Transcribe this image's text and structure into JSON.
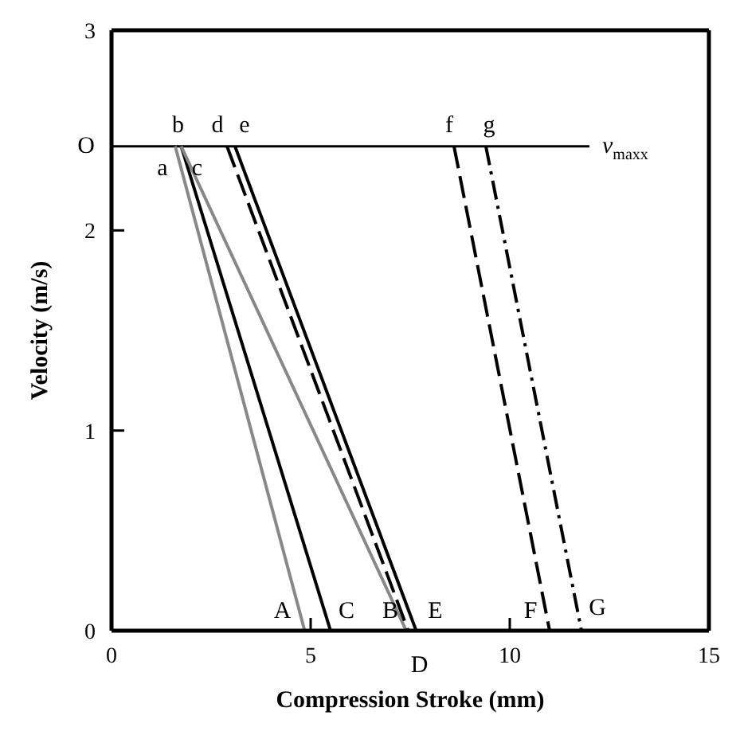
{
  "chart_data": {
    "type": "line",
    "xlabel": "Compression Stroke (mm)",
    "ylabel": "Velocity (m/s)",
    "xlim": [
      0,
      15
    ],
    "xticks": [
      0,
      5,
      10,
      15
    ],
    "ylim": [
      0,
      3
    ],
    "yticks": [
      0,
      1,
      2,
      3
    ],
    "grid": false,
    "legend": false,
    "marker": "none",
    "series": [
      {
        "name": "v$_{maxx}$",
        "color": "#000000",
        "line_style": "solid",
        "x": [
          0,
          12
        ],
        "values": [
          2.42,
          2.42
        ]
      },
      {
        "color": "#888888",
        "line_style": "solid",
        "x": [
          1.6,
          4.85
        ],
        "values": [
          2.42,
          0
        ]
      },
      {
        "color": "#000000",
        "line_style": "solid",
        "x": [
          1.75,
          5.5
        ],
        "values": [
          2.42,
          0
        ]
      },
      {
        "color": "#888888",
        "line_style": "solid",
        "x": [
          1.75,
          7.4
        ],
        "values": [
          2.42,
          0
        ]
      },
      {
        "color": "#000000",
        "line_style": "dashed",
        "x": [
          2.9,
          7.45
        ],
        "values": [
          2.42,
          0
        ]
      },
      {
        "color": "#000000",
        "line_style": "solid",
        "x": [
          3.1,
          7.65
        ],
        "values": [
          2.42,
          0
        ]
      },
      {
        "color": "#000000",
        "line_style": "dashed",
        "x": [
          8.6,
          11.0
        ],
        "values": [
          2.42,
          0
        ]
      },
      {
        "color": "#000000",
        "line_style": "dashdot",
        "x": [
          9.4,
          11.8
        ],
        "values": [
          2.42,
          0
        ]
      }
    ],
    "annotations": [
      {
        "text": "O",
        "x": 0,
        "y": 2.42
      },
      {
        "text": "a",
        "x": 1.6,
        "y": 2.42
      },
      {
        "text": "b",
        "x": 1.75,
        "y": 2.42
      },
      {
        "text": "c",
        "x": 1.75,
        "y": 2.42
      },
      {
        "text": "d",
        "x": 2.9,
        "y": 2.42
      },
      {
        "text": "e",
        "x": 3.1,
        "y": 2.42
      },
      {
        "text": "f",
        "x": 8.6,
        "y": 2.42
      },
      {
        "text": "g",
        "x": 9.4,
        "y": 2.42
      },
      {
        "text": "A",
        "x": 4.85,
        "y": 0
      },
      {
        "text": "C",
        "x": 5.5,
        "y": 0
      },
      {
        "text": "B",
        "x": 7.4,
        "y": 0
      },
      {
        "text": "E",
        "x": 7.65,
        "y": 0
      },
      {
        "text": "D",
        "x": 7.45,
        "y": 0
      },
      {
        "text": "F",
        "x": 11.0,
        "y": 0
      },
      {
        "text": "G",
        "x": 11.8,
        "y": 0
      }
    ]
  }
}
